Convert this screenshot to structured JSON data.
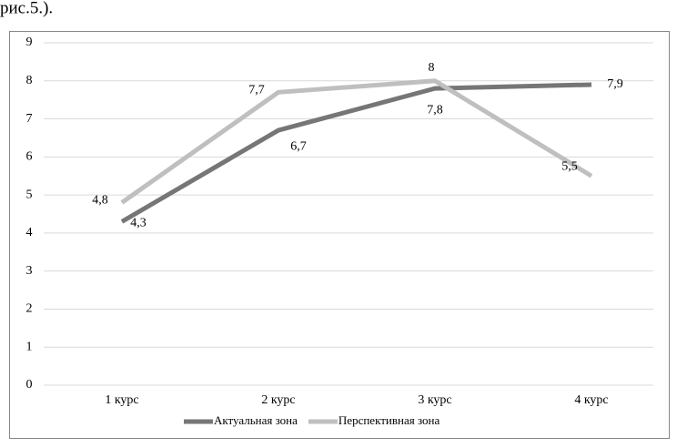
{
  "header_text": "рис.5.).",
  "chart_data": {
    "type": "line",
    "categories": [
      "1 курс",
      "2 курс",
      "3 курс",
      "4 курс"
    ],
    "series": [
      {
        "name": "Актуальная зона",
        "color": "#767676",
        "values": [
          4.3,
          6.7,
          7.8,
          7.9
        ],
        "value_labels": [
          "4,3",
          "6,7",
          "7,8",
          "7,9"
        ]
      },
      {
        "name": "Перспективная зона",
        "color": "#bfbfbf",
        "values": [
          4.8,
          7.7,
          8,
          5.5
        ],
        "value_labels": [
          "4,8",
          "7,7",
          "8",
          "5,5"
        ]
      }
    ],
    "ylim": [
      0,
      9
    ],
    "yticks": [
      0,
      1,
      2,
      3,
      4,
      5,
      6,
      7,
      8,
      9
    ],
    "grid": true,
    "legend": "bottom"
  }
}
